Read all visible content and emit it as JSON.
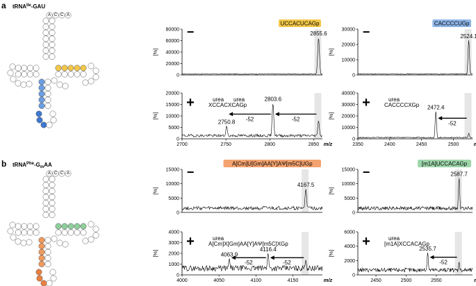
{
  "panels": [
    {
      "letter": "a",
      "trna": {
        "prefix": "tRNA",
        "sup": "Ile",
        "suffix": "-GAU"
      },
      "top_sequence": "ACCA",
      "spectra": [
        {
          "id": "a1",
          "sign": "−",
          "badge": {
            "text": "UCCACUCAGp",
            "bold_idx": [
              0,
              5
            ],
            "color": "#f3c84a"
          },
          "xlim": [
            2700,
            2860
          ],
          "xticks": [],
          "xlabel": "",
          "ylim": [
            0,
            80000
          ],
          "yticks": [
            "0",
            "20000",
            "40000",
            "60000",
            "80000"
          ],
          "ylabel": "[%]",
          "peaks": [
            {
              "x": 2855.6,
              "h": 0.82,
              "label": "2855.6"
            }
          ],
          "noise": 0.03
        },
        {
          "id": "a2",
          "sign": "−",
          "badge": {
            "text": "CACCCCUGp",
            "bold_idx": [],
            "color": "#8fb6e8"
          },
          "xlim": [
            2350,
            2530
          ],
          "xticks": [],
          "xlabel": "",
          "ylim": [
            0,
            30000
          ],
          "yticks": [
            "0",
            "10000",
            "20000",
            "30000"
          ],
          "ylabel": "[%]",
          "peaks": [
            {
              "x": 2524.1,
              "h": 0.76,
              "label": "2524.1"
            }
          ],
          "noise": 0.03
        },
        {
          "id": "a3",
          "sign": "+",
          "xlim": [
            2700,
            2860
          ],
          "xticks": [
            "2700",
            "2750",
            "2800",
            "2850"
          ],
          "xlabel": "m/z",
          "ylim": [
            0,
            20000
          ],
          "yticks": [
            "0",
            "5000",
            "10000",
            "15000",
            "20000"
          ],
          "ylabel": "[%]",
          "peaks": [
            {
              "x": 2750.8,
              "h": 0.28,
              "label": "2750.8"
            },
            {
              "x": 2803.6,
              "h": 0.78,
              "label": "2803.6"
            },
            {
              "x": 2855.6,
              "h": 0.4,
              "label": ""
            }
          ],
          "noise": 0.1,
          "annotations": [
            "urea",
            "urea",
            "XCCACXCAGp",
            "-52",
            "-52"
          ]
        },
        {
          "id": "a4",
          "sign": "+",
          "xlim": [
            2350,
            2530
          ],
          "xticks": [
            "2350",
            "2400",
            "2450",
            "2500"
          ],
          "xlabel": "m/z",
          "ylim": [
            0,
            40000
          ],
          "yticks": [
            "0",
            "10000",
            "20000",
            "30000",
            "40000"
          ],
          "ylabel": "[%]",
          "peaks": [
            {
              "x": 2472.4,
              "h": 0.6,
              "label": "2472.4"
            },
            {
              "x": 2524.1,
              "h": 0.12,
              "label": ""
            }
          ],
          "noise": 0.04,
          "annotations": [
            "urea",
            "CACCCCXGp",
            "-52"
          ]
        }
      ]
    },
    {
      "letter": "b",
      "trna": {
        "prefix": "tRNA",
        "sup": "Phe",
        "suffix": "-G",
        "sub": "m",
        "suffix2": "AA"
      },
      "top_sequence": "ACCA",
      "spectra": [
        {
          "id": "b1",
          "sign": "−",
          "badge": {
            "text": "A[Cm]U[Gm]AA[Y]AΨ[m5C]UGp",
            "color": "#f4a370"
          },
          "xlim": [
            4000,
            4190
          ],
          "xticks": [],
          "xlabel": "",
          "ylim": [
            0,
            15000
          ],
          "yticks": [
            "0",
            "5000",
            "10000",
            "15000"
          ],
          "ylabel": "[%]",
          "peaks": [
            {
              "x": 4167.5,
              "h": 0.55,
              "label": "4167.5"
            }
          ],
          "noise": 0.14
        },
        {
          "id": "b2",
          "sign": "−",
          "badge": {
            "text": "[m1A]UCCACAGp",
            "color": "#9dd6aa"
          },
          "xlim": [
            2420,
            2610
          ],
          "xticks": [],
          "xlabel": "",
          "ylim": [
            0,
            15000
          ],
          "yticks": [
            "0",
            "5000",
            "10000",
            "15000"
          ],
          "ylabel": "[%]",
          "peaks": [
            {
              "x": 2587.7,
              "h": 0.8,
              "label": "2587.7"
            }
          ],
          "noise": 0.14
        },
        {
          "id": "b3",
          "sign": "+",
          "xlim": [
            4000,
            4190
          ],
          "xticks": [
            "4000",
            "4050",
            "4100",
            "4150"
          ],
          "xlabel": "m/z",
          "ylim": [
            0,
            4000
          ],
          "yticks": [
            "0",
            "1000",
            "2000",
            "3000",
            "4000"
          ],
          "ylabel": "[%]",
          "peaks": [
            {
              "x": 4063.9,
              "h": 0.38,
              "label": "4063.9"
            },
            {
              "x": 4116.4,
              "h": 0.5,
              "label": "4116.4"
            },
            {
              "x": 4167.5,
              "h": 0.35,
              "label": ""
            }
          ],
          "noise": 0.22,
          "annotations": [
            "urea",
            "A[Cm]X[Gm]AA[Y]AΨ[m5C]XGp",
            "-52",
            "-52"
          ]
        },
        {
          "id": "b4",
          "sign": "+",
          "xlim": [
            2420,
            2610
          ],
          "xticks": [
            "2450",
            "2500",
            "2550",
            "m/z"
          ],
          "xlabel": "",
          "ylim": [
            0,
            6000
          ],
          "yticks": [
            "0",
            "2000",
            "4000",
            "6000"
          ],
          "ylabel": "[%]",
          "peaks": [
            {
              "x": 2535.7,
              "h": 0.52,
              "label": "2535.7"
            },
            {
              "x": 2587.7,
              "h": 0.3,
              "label": ""
            }
          ],
          "noise": 0.16,
          "annotations": [
            "urea",
            "[m1A]XCCACAGp",
            "-52"
          ]
        }
      ]
    }
  ]
}
